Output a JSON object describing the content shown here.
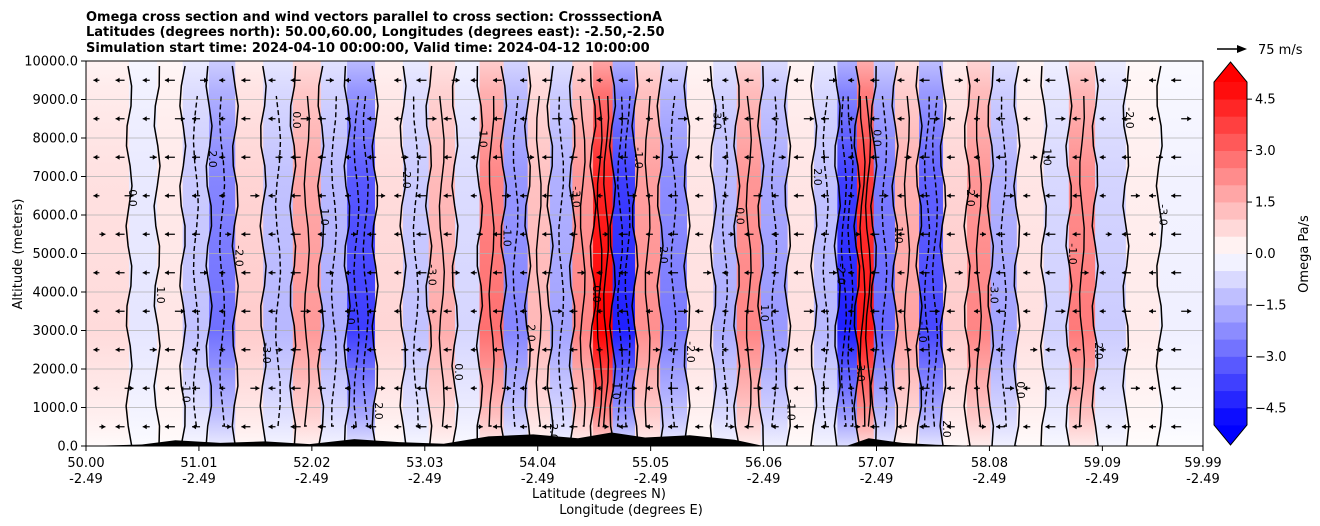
{
  "chart_data": {
    "type": "heatmap",
    "title_lines": [
      "Omega cross section and wind vectors parallel to cross section: CrosssectionA",
      "Latitudes (degrees north): 50.00,60.00, Longitudes (degrees east): -2.50,-2.50",
      "Simulation start time: 2024-04-10 00:00:00, Valid time: 2024-04-12 10:00:00"
    ],
    "ylabel": "Altitude (meters)",
    "xlabel_lines": [
      "Latitude (degrees N)",
      "Longitude (degrees E)"
    ],
    "ylim": [
      0,
      10000
    ],
    "xlim": [
      50.0,
      59.99
    ],
    "y_ticks": [
      0,
      1000,
      2000,
      3000,
      4000,
      5000,
      6000,
      7000,
      8000,
      9000,
      10000
    ],
    "y_tick_labels": [
      "0.0",
      "1000.0",
      "2000.0",
      "3000.0",
      "4000.0",
      "5000.0",
      "6000.0",
      "7000.0",
      "8000.0",
      "9000.0",
      "10000.0"
    ],
    "x_ticks": [
      50.0,
      51.01,
      52.02,
      53.03,
      54.04,
      55.05,
      56.06,
      57.07,
      58.08,
      59.09,
      59.99
    ],
    "x_tick_labels_lat": [
      "50.00",
      "51.01",
      "52.02",
      "53.03",
      "54.04",
      "55.05",
      "56.06",
      "57.07",
      "58.08",
      "59.09",
      "59.99"
    ],
    "x_tick_labels_lon": [
      "-2.49",
      "-2.49",
      "-2.49",
      "-2.49",
      "-2.49",
      "-2.49",
      "-2.49",
      "-2.49",
      "-2.49",
      "-2.49",
      "-2.49"
    ],
    "grid": true,
    "colorbar": {
      "label": "Omega Pa/s",
      "range": [
        -5.0,
        5.0
      ],
      "step": 0.5,
      "ticks": [
        -4.5,
        -3.0,
        -1.5,
        0.0,
        1.5,
        3.0,
        4.5
      ],
      "tick_labels": [
        "−4.5",
        "−3.0",
        "−1.5",
        "0.0",
        "1.5",
        "3.0",
        "4.5"
      ],
      "extend": "both",
      "cmap": "bwr"
    },
    "quiver_key": {
      "label": "75 m/s",
      "speed": 75
    },
    "omega_columns": [
      {
        "lat": 50.25,
        "v": 0.7
      },
      {
        "lat": 50.52,
        "v": -0.5
      },
      {
        "lat": 50.75,
        "v": 0.5
      },
      {
        "lat": 50.98,
        "v": -1.2
      },
      {
        "lat": 51.22,
        "v": -2.8
      },
      {
        "lat": 51.45,
        "v": 1.0
      },
      {
        "lat": 51.72,
        "v": -1.4
      },
      {
        "lat": 51.98,
        "v": 2.0
      },
      {
        "lat": 52.22,
        "v": -1.6
      },
      {
        "lat": 52.45,
        "v": -3.8
      },
      {
        "lat": 52.72,
        "v": 0.8
      },
      {
        "lat": 52.95,
        "v": -1.2
      },
      {
        "lat": 53.18,
        "v": 1.6
      },
      {
        "lat": 53.42,
        "v": -0.8
      },
      {
        "lat": 53.62,
        "v": 2.8
      },
      {
        "lat": 53.85,
        "v": -2.4
      },
      {
        "lat": 54.05,
        "v": 1.4
      },
      {
        "lat": 54.25,
        "v": -1.8
      },
      {
        "lat": 54.45,
        "v": 2.4
      },
      {
        "lat": 54.62,
        "v": 5.0
      },
      {
        "lat": 54.8,
        "v": -4.4
      },
      {
        "lat": 55.02,
        "v": 2.2
      },
      {
        "lat": 55.25,
        "v": -2.6
      },
      {
        "lat": 55.5,
        "v": 0.6
      },
      {
        "lat": 55.72,
        "v": -1.6
      },
      {
        "lat": 55.92,
        "v": 2.4
      },
      {
        "lat": 56.15,
        "v": -2.0
      },
      {
        "lat": 56.4,
        "v": 0.6
      },
      {
        "lat": 56.62,
        "v": -1.4
      },
      {
        "lat": 56.82,
        "v": -4.4
      },
      {
        "lat": 56.97,
        "v": 4.6
      },
      {
        "lat": 57.12,
        "v": -3.0
      },
      {
        "lat": 57.35,
        "v": 1.8
      },
      {
        "lat": 57.55,
        "v": -3.6
      },
      {
        "lat": 57.78,
        "v": 1.0
      },
      {
        "lat": 57.98,
        "v": 2.4
      },
      {
        "lat": 58.2,
        "v": -1.8
      },
      {
        "lat": 58.45,
        "v": 0.6
      },
      {
        "lat": 58.68,
        "v": -0.9
      },
      {
        "lat": 58.9,
        "v": 2.6
      },
      {
        "lat": 59.15,
        "v": -1.0
      },
      {
        "lat": 59.45,
        "v": 0.4
      },
      {
        "lat": 59.75,
        "v": -0.3
      }
    ],
    "terrain_profile": [
      {
        "lat": 50.0,
        "alt": 0
      },
      {
        "lat": 50.5,
        "alt": 40
      },
      {
        "lat": 50.8,
        "alt": 150
      },
      {
        "lat": 51.2,
        "alt": 80
      },
      {
        "lat": 51.6,
        "alt": 120
      },
      {
        "lat": 52.0,
        "alt": 50
      },
      {
        "lat": 52.4,
        "alt": 180
      },
      {
        "lat": 52.8,
        "alt": 100
      },
      {
        "lat": 53.2,
        "alt": 60
      },
      {
        "lat": 53.6,
        "alt": 250
      },
      {
        "lat": 54.0,
        "alt": 300
      },
      {
        "lat": 54.4,
        "alt": 200
      },
      {
        "lat": 54.7,
        "alt": 350
      },
      {
        "lat": 55.0,
        "alt": 220
      },
      {
        "lat": 55.4,
        "alt": 280
      },
      {
        "lat": 55.8,
        "alt": 160
      },
      {
        "lat": 56.06,
        "alt": 0
      },
      {
        "lat": 56.8,
        "alt": 0
      },
      {
        "lat": 57.0,
        "alt": 200
      },
      {
        "lat": 57.3,
        "alt": 80
      },
      {
        "lat": 57.6,
        "alt": 30
      },
      {
        "lat": 58.0,
        "alt": 0
      },
      {
        "lat": 59.99,
        "alt": 0
      }
    ],
    "contour_inline_labels": [
      "0.0",
      "1.0",
      "-1.0",
      "2.0",
      "-2.0",
      "-3.0"
    ]
  }
}
